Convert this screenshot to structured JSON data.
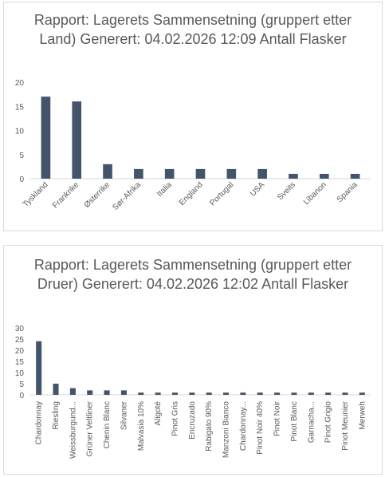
{
  "chart_data": [
    {
      "type": "bar",
      "title": "Rapport: Lagerets Sammensetning (gruppert etter Land) Generert: 04.02.2026 12:09 Antall Flasker",
      "categories": [
        "Tyskland",
        "Frankrike",
        "Østerrike",
        "Sør-Afrika",
        "Italia",
        "England",
        "Portugal",
        "USA",
        "Sveits",
        "Libanon",
        "Spania"
      ],
      "values": [
        17,
        16,
        3,
        2,
        2,
        2,
        2,
        2,
        1,
        1,
        1
      ],
      "ylim": [
        0,
        20
      ],
      "yticks": [
        0,
        5,
        10,
        15,
        20
      ],
      "bar_color": "#44546a",
      "grid": false
    },
    {
      "type": "bar",
      "title": "Rapport: Lagerets Sammensetning (gruppert etter Druer) Generert: 04.02.2026 12:02 Antall Flasker",
      "categories": [
        "Chardonnay",
        "Riesling",
        "Weissburgund...",
        "Grüner Veltliner",
        "Chenin Blanc",
        "Silvaner",
        "Malvasia 10%",
        "Aligoté",
        "Pinot Gris",
        "Encruzado",
        "Rabigato 90%",
        "Manzoni Bianco",
        "Chardonnay...",
        "Pinot Noir 40%",
        "Pinot Noir",
        "Pinot Blanc",
        "Garnacha...",
        "Pinot Grigio",
        "Pinot Meunier",
        "Merweh"
      ],
      "values": [
        24,
        5,
        3,
        2,
        2,
        2,
        1,
        1,
        1,
        1,
        1,
        1,
        1,
        1,
        1,
        1,
        1,
        1,
        1,
        1
      ],
      "ylim": [
        0,
        30
      ],
      "yticks": [
        0,
        5,
        10,
        15,
        20,
        25,
        30
      ],
      "bar_color": "#44546a",
      "grid": false
    }
  ]
}
